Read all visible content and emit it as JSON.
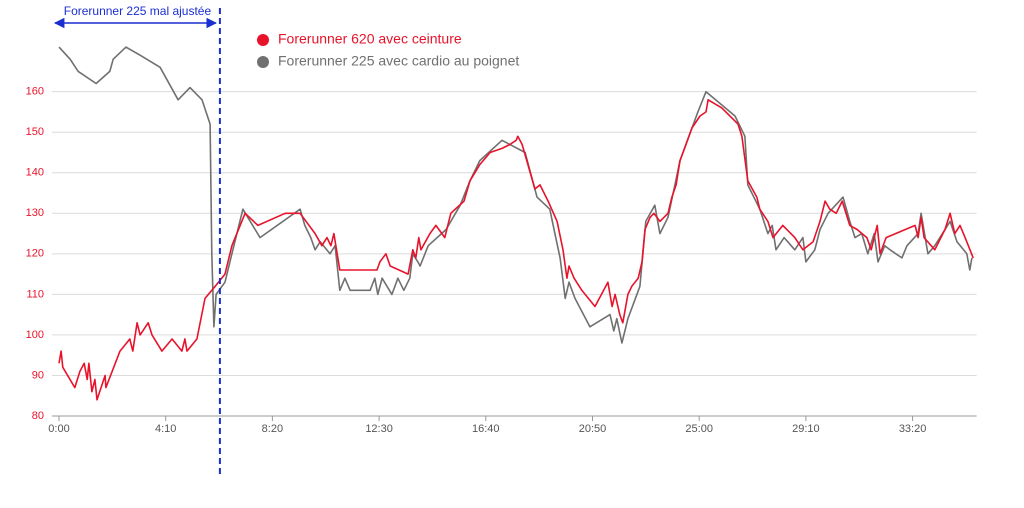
{
  "chart_data": {
    "type": "line",
    "annotation": {
      "text": "Forerunner 225 mal ajustée",
      "x": 377,
      "color": "#1a2fd0"
    },
    "xlim": [
      0,
      2150
    ],
    "xticks": [
      {
        "value": 0,
        "label": "0:00"
      },
      {
        "value": 250,
        "label": "4:10"
      },
      {
        "value": 500,
        "label": "8:20"
      },
      {
        "value": 750,
        "label": "12:30"
      },
      {
        "value": 1000,
        "label": "16:40"
      },
      {
        "value": 1250,
        "label": "20:50"
      },
      {
        "value": 1500,
        "label": "25:00"
      },
      {
        "value": 1750,
        "label": "29:10"
      },
      {
        "value": 2000,
        "label": "33:20"
      }
    ],
    "ylim": [
      80,
      172
    ],
    "yticks": [
      80,
      90,
      100,
      110,
      120,
      130,
      140,
      150,
      160
    ],
    "grid": true,
    "series": [
      {
        "name": "Forerunner 620 avec ceinture",
        "color": "#e8132b",
        "x": [
          0,
          5,
          9,
          37,
          49,
          59,
          66,
          70,
          77,
          84,
          89,
          108,
          110,
          143,
          166,
          173,
          183,
          190,
          209,
          218,
          241,
          265,
          288,
          295,
          300,
          323,
          342,
          366,
          389,
          405,
          436,
          466,
          530,
          565,
          600,
          616,
          628,
          637,
          644,
          658,
          745,
          752,
          766,
          776,
          818,
          829,
          836,
          843,
          848,
          869,
          883,
          904,
          918,
          949,
          963,
          986,
          1010,
          1038,
          1057,
          1071,
          1075,
          1085,
          1115,
          1127,
          1146,
          1167,
          1181,
          1190,
          1195,
          1207,
          1225,
          1256,
          1286,
          1296,
          1303,
          1314,
          1321,
          1333,
          1342,
          1357,
          1366,
          1373,
          1385,
          1394,
          1408,
          1427,
          1436,
          1446,
          1455,
          1469,
          1483,
          1502,
          1516,
          1521,
          1553,
          1591,
          1600,
          1614,
          1635,
          1642,
          1661,
          1673,
          1696,
          1724,
          1743,
          1767,
          1783,
          1795,
          1806,
          1821,
          1835,
          1853,
          1870,
          1893,
          1903,
          1917,
          1924,
          1938,
          2006,
          2013,
          2020,
          2027,
          2052,
          2076,
          2088,
          2099,
          2111,
          2123,
          2142
        ],
        "values": [
          93,
          96,
          92,
          87,
          91,
          93,
          89,
          93,
          86,
          89,
          84,
          90,
          87,
          96,
          99,
          96,
          103,
          100,
          103,
          100,
          96,
          99,
          96,
          99,
          96,
          99,
          109,
          112,
          115,
          122,
          130,
          127,
          130,
          130,
          125,
          122,
          124,
          122,
          125,
          116,
          116,
          118,
          120,
          117,
          115,
          121,
          119,
          124,
          121,
          125,
          127,
          124,
          130,
          133,
          138,
          142,
          145,
          146,
          147,
          148,
          149,
          147,
          136,
          137,
          133,
          128,
          121,
          114,
          117,
          114,
          111,
          107,
          113,
          107,
          110,
          105,
          103,
          110,
          112,
          114,
          118,
          126,
          129,
          130,
          128,
          130,
          134,
          137,
          143,
          147,
          151,
          154,
          155,
          158,
          156,
          152,
          149,
          138,
          134,
          131,
          128,
          124,
          127,
          124,
          121,
          123,
          128,
          133,
          131,
          130,
          133,
          127,
          126,
          124,
          121,
          127,
          120,
          124,
          127,
          124,
          129,
          124,
          121,
          126,
          130,
          125,
          127,
          124,
          119
        ]
      },
      {
        "name": "Forerunner 225 avec cardio au poignet",
        "color": "#707070",
        "x": [
          0,
          26,
          45,
          87,
          119,
          127,
          157,
          190,
          237,
          279,
          307,
          335,
          354,
          358,
          363,
          368,
          389,
          405,
          431,
          471,
          565,
          576,
          590,
          600,
          612,
          635,
          647,
          658,
          670,
          682,
          729,
          740,
          747,
          757,
          780,
          794,
          808,
          822,
          829,
          841,
          846,
          865,
          907,
          940,
          963,
          986,
          1038,
          1092,
          1120,
          1150,
          1162,
          1174,
          1186,
          1195,
          1209,
          1244,
          1291,
          1300,
          1307,
          1319,
          1333,
          1361,
          1375,
          1396,
          1408,
          1427,
          1443,
          1455,
          1497,
          1516,
          1584,
          1607,
          1614,
          1642,
          1661,
          1671,
          1680,
          1699,
          1724,
          1743,
          1750,
          1771,
          1783,
          1802,
          1837,
          1853,
          1865,
          1881,
          1895,
          1910,
          1919,
          1935,
          1947,
          1975,
          1987,
          2013,
          2020,
          2036,
          2052,
          2088,
          2104,
          2127,
          2134,
          2139
        ],
        "values": [
          171,
          168,
          165,
          162,
          165,
          168,
          171,
          169,
          166,
          158,
          161,
          158,
          152,
          120,
          102,
          110,
          113,
          120,
          131,
          124,
          131,
          127,
          124,
          121,
          123,
          120,
          122,
          111,
          114,
          111,
          111,
          114,
          110,
          114,
          110,
          114,
          111,
          114,
          120,
          118,
          117,
          122,
          126,
          132,
          138,
          143,
          148,
          145,
          134,
          131,
          125,
          119,
          109,
          113,
          109,
          102,
          105,
          101,
          104,
          98,
          104,
          112,
          128,
          132,
          125,
          129,
          137,
          143,
          155,
          160,
          154,
          149,
          137,
          131,
          125,
          127,
          121,
          124,
          121,
          124,
          118,
          121,
          126,
          130,
          134,
          128,
          124,
          125,
          120,
          125,
          118,
          122,
          121,
          119,
          122,
          125,
          130,
          120,
          122,
          128,
          123,
          120,
          116,
          119
        ]
      }
    ]
  }
}
